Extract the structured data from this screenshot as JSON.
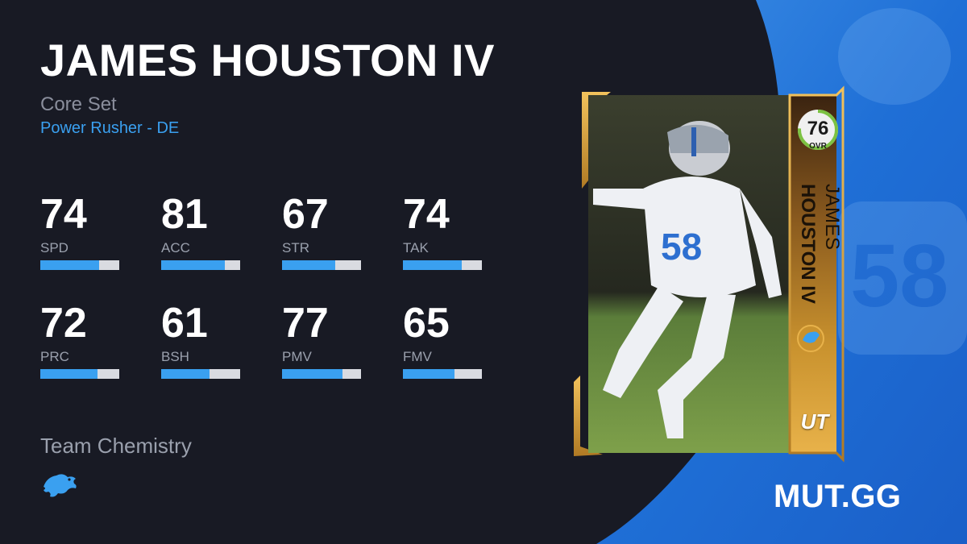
{
  "player": {
    "name": "JAMES HOUSTON IV",
    "set": "Core Set",
    "archetype": "Power Rusher - DE",
    "first_name": "JAMES",
    "last_name": "HOUSTON IV"
  },
  "stats": [
    {
      "value": "74",
      "label": "SPD",
      "fraction": 0.74
    },
    {
      "value": "81",
      "label": "ACC",
      "fraction": 0.81
    },
    {
      "value": "67",
      "label": "STR",
      "fraction": 0.67
    },
    {
      "value": "74",
      "label": "TAK",
      "fraction": 0.74
    },
    {
      "value": "72",
      "label": "PRC",
      "fraction": 0.72
    },
    {
      "value": "61",
      "label": "BSH",
      "fraction": 0.61
    },
    {
      "value": "77",
      "label": "PMV",
      "fraction": 0.77
    },
    {
      "value": "65",
      "label": "FMV",
      "fraction": 0.65
    }
  ],
  "chemistry": {
    "label": "Team Chemistry",
    "team_icon": "lions-logo-icon"
  },
  "card": {
    "ovr": "76",
    "ovr_label": "OVR",
    "ovr_fraction": 0.76,
    "program": "UT",
    "jersey_number": "58",
    "team_icon": "lions-logo-icon"
  },
  "brand": "MUT.GG",
  "colors": {
    "background": "#181a24",
    "accent_blue": "#3aa0f0",
    "bar_track": "#d9dbe1",
    "panel_blue": "#1f78e0",
    "card_gold": "#c9922e",
    "ovr_ring": "#7cc242"
  }
}
